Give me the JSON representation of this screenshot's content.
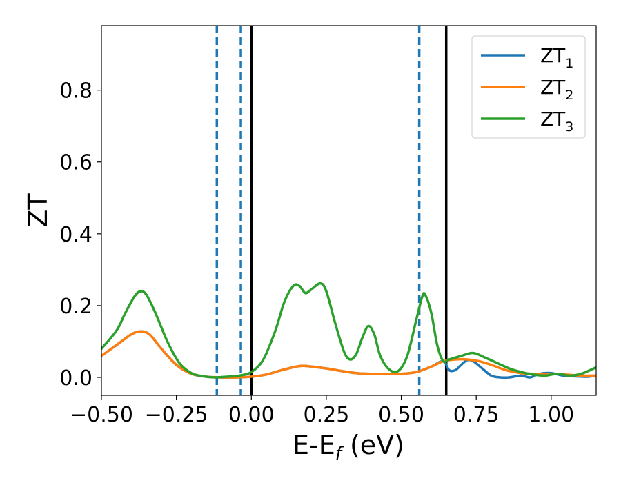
{
  "chart_data": {
    "type": "line",
    "xlabel": "E-E",
    "xlabel_sub": "f",
    "xlabel_unit": " (eV)",
    "ylabel": "ZT",
    "xlim": [
      -0.5,
      1.15
    ],
    "ylim": [
      -0.05,
      0.98
    ],
    "xticks": [
      -0.5,
      -0.25,
      0.0,
      0.25,
      0.5,
      0.75,
      1.0
    ],
    "xtick_labels": [
      "−0.50",
      "−0.25",
      "0.00",
      "0.25",
      "0.50",
      "0.75",
      "1.00"
    ],
    "yticks": [
      0.0,
      0.2,
      0.4,
      0.6,
      0.8
    ],
    "ytick_labels": [
      "0.0",
      "0.2",
      "0.4",
      "0.6",
      "0.8"
    ],
    "legend_position": "top-right",
    "vlines_solid": [
      0.0,
      0.65
    ],
    "vlines_dashed": [
      -0.115,
      -0.035,
      0.56
    ],
    "vline_solid_color": "#000000",
    "vline_dashed_color": "#1f77b4",
    "series": [
      {
        "name": "ZT",
        "sub": "1",
        "color": "#1f77b4",
        "x": [
          -0.5,
          -0.45,
          -0.4,
          -0.37,
          -0.34,
          -0.3,
          -0.25,
          -0.2,
          -0.15,
          -0.1,
          -0.05,
          0.0,
          0.05,
          0.1,
          0.15,
          0.18,
          0.25,
          0.3,
          0.35,
          0.4,
          0.45,
          0.5,
          0.55,
          0.6,
          0.64,
          0.66,
          0.68,
          0.7,
          0.72,
          0.74,
          0.77,
          0.8,
          0.83,
          0.86,
          0.9,
          0.93,
          0.96,
          1.0,
          1.04,
          1.08,
          1.12,
          1.15
        ],
        "y": [
          0.06,
          0.09,
          0.12,
          0.128,
          0.12,
          0.08,
          0.035,
          0.01,
          0.002,
          0.0,
          0.0,
          0.002,
          0.008,
          0.02,
          0.03,
          0.032,
          0.025,
          0.018,
          0.012,
          0.01,
          0.01,
          0.01,
          0.015,
          0.03,
          0.045,
          0.02,
          0.02,
          0.035,
          0.048,
          0.045,
          0.025,
          0.005,
          0.0,
          0.0,
          0.005,
          0.0,
          0.01,
          0.012,
          0.005,
          0.003,
          0.002,
          0.005
        ]
      },
      {
        "name": "ZT",
        "sub": "2",
        "color": "#ff7f0e",
        "x": [
          -0.5,
          -0.45,
          -0.4,
          -0.37,
          -0.34,
          -0.3,
          -0.25,
          -0.2,
          -0.15,
          -0.1,
          -0.05,
          0.0,
          0.05,
          0.1,
          0.15,
          0.18,
          0.25,
          0.3,
          0.35,
          0.4,
          0.45,
          0.5,
          0.55,
          0.6,
          0.64,
          0.68,
          0.72,
          0.76,
          0.8,
          0.85,
          0.9,
          0.95,
          1.0,
          1.05,
          1.1,
          1.15
        ],
        "y": [
          0.06,
          0.09,
          0.12,
          0.128,
          0.12,
          0.08,
          0.035,
          0.01,
          0.002,
          0.0,
          0.0,
          0.002,
          0.008,
          0.02,
          0.03,
          0.032,
          0.025,
          0.018,
          0.012,
          0.01,
          0.01,
          0.01,
          0.015,
          0.03,
          0.045,
          0.05,
          0.05,
          0.045,
          0.035,
          0.02,
          0.012,
          0.01,
          0.01,
          0.008,
          0.005,
          0.005
        ]
      },
      {
        "name": "ZT",
        "sub": "3",
        "color": "#2ca02c",
        "x": [
          -0.5,
          -0.45,
          -0.42,
          -0.39,
          -0.37,
          -0.35,
          -0.32,
          -0.28,
          -0.24,
          -0.2,
          -0.16,
          -0.12,
          -0.08,
          -0.04,
          0.0,
          0.04,
          0.08,
          0.11,
          0.14,
          0.16,
          0.18,
          0.2,
          0.23,
          0.25,
          0.28,
          0.31,
          0.33,
          0.35,
          0.37,
          0.39,
          0.41,
          0.43,
          0.46,
          0.49,
          0.52,
          0.55,
          0.57,
          0.58,
          0.6,
          0.62,
          0.64,
          0.66,
          0.7,
          0.74,
          0.78,
          0.82,
          0.86,
          0.9,
          0.94,
          0.98,
          1.02,
          1.06,
          1.1,
          1.15
        ],
        "y": [
          0.08,
          0.13,
          0.18,
          0.225,
          0.24,
          0.23,
          0.18,
          0.1,
          0.04,
          0.012,
          0.003,
          0.0,
          0.002,
          0.005,
          0.015,
          0.05,
          0.13,
          0.21,
          0.255,
          0.255,
          0.235,
          0.245,
          0.262,
          0.24,
          0.15,
          0.07,
          0.05,
          0.065,
          0.11,
          0.143,
          0.12,
          0.06,
          0.022,
          0.018,
          0.06,
          0.16,
          0.225,
          0.23,
          0.18,
          0.09,
          0.045,
          0.05,
          0.06,
          0.068,
          0.055,
          0.04,
          0.025,
          0.015,
          0.008,
          0.005,
          0.01,
          0.005,
          0.01,
          0.028
        ]
      }
    ]
  }
}
